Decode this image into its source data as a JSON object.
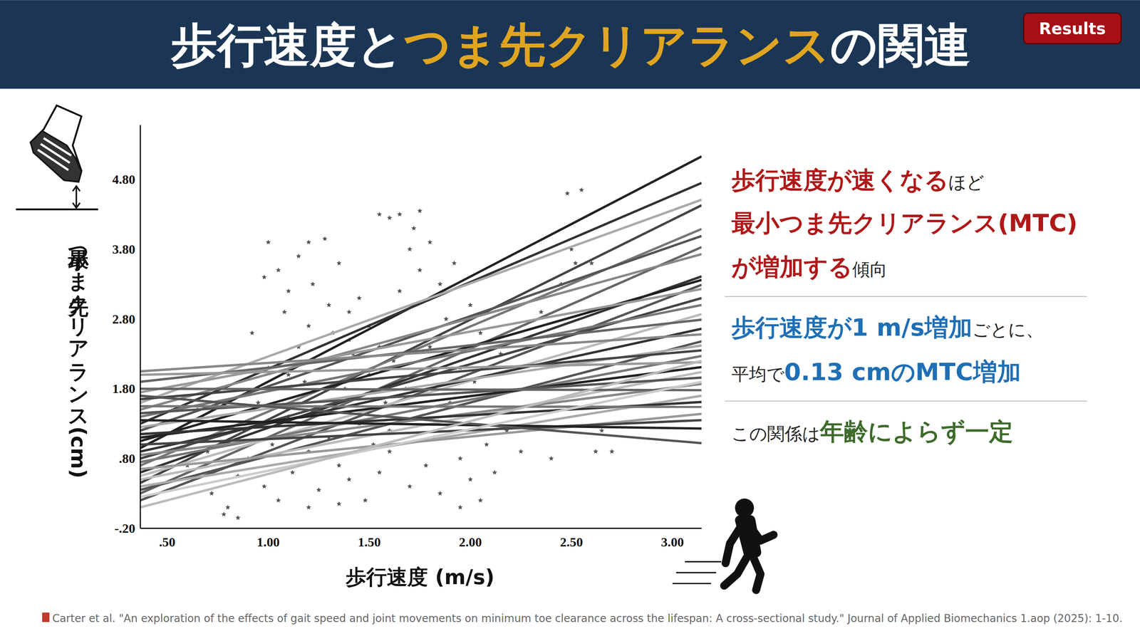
{
  "header": {
    "title": [
      {
        "text": "歩行速度と",
        "color": "#ffffff"
      },
      {
        "text": "つま先クリアランス",
        "color": "#e0a520"
      },
      {
        "text": "の関連",
        "color": "#ffffff"
      }
    ],
    "badge": "Results"
  },
  "chart_data": {
    "type": "scatter",
    "x_label": "歩行速度 (m/s)",
    "y_label": "最小つま先クリアランス (cm)",
    "xlim": [
      0.367,
      3.144
    ],
    "ylim": [
      -0.2,
      5.58
    ],
    "xticks": [
      {
        "value": 0.5,
        "label": ".50"
      },
      {
        "value": 1.0,
        "label": "1.00"
      },
      {
        "value": 1.5,
        "label": "1.50"
      },
      {
        "value": 2.0,
        "label": "2.00"
      },
      {
        "value": 2.5,
        "label": "2.50"
      },
      {
        "value": 3.0,
        "label": "3.00"
      }
    ],
    "yticks": [
      {
        "value": -0.2,
        "label": "-.20"
      },
      {
        "value": 0.8,
        "label": ".80"
      },
      {
        "value": 1.8,
        "label": "1.80"
      },
      {
        "value": 2.8,
        "label": "2.80"
      },
      {
        "value": 3.8,
        "label": "3.80"
      },
      {
        "value": 4.8,
        "label": "4.80"
      }
    ],
    "grid": false,
    "series": [
      {
        "type": "scatter",
        "marker": "star",
        "color": "#555555",
        "x": [
          0.72,
          0.8,
          0.85,
          0.88,
          0.9,
          0.92,
          0.95,
          0.98,
          1.0,
          1.0,
          1.02,
          1.05,
          1.05,
          1.08,
          1.1,
          1.1,
          1.12,
          1.15,
          1.15,
          1.18,
          1.2,
          1.2,
          1.22,
          1.25,
          1.25,
          1.28,
          1.3,
          1.3,
          1.32,
          1.35,
          1.35,
          1.38,
          1.4,
          1.4,
          1.42,
          1.45,
          1.45,
          1.48,
          1.5,
          1.5,
          1.52,
          1.55,
          1.55,
          1.58,
          1.2,
          1.28,
          0.98,
          1.1,
          1.4,
          1.6,
          1.6,
          1.62,
          1.65,
          1.65,
          1.68,
          1.7,
          1.7,
          1.72,
          1.75,
          1.75,
          1.78,
          1.8,
          1.8,
          1.82,
          1.85,
          1.85,
          1.88,
          1.9,
          1.92,
          1.95,
          1.95,
          1.98,
          2.0,
          2.0,
          2.02,
          2.05,
          2.08,
          2.1,
          2.12,
          2.15,
          2.18,
          2.2,
          2.25,
          2.3,
          2.35,
          2.4,
          2.45,
          2.5,
          2.52,
          2.48,
          2.55,
          2.6,
          2.62,
          2.7,
          2.65,
          1.75,
          1.6,
          1.55,
          1.2,
          1.35,
          1.95,
          2.05,
          0.78,
          0.85,
          0.6,
          0.65,
          0.55,
          0.7
        ],
        "values": [
          0.3,
          0.1,
          0.55,
          1.2,
          0.8,
          2.6,
          1.6,
          0.4,
          2.1,
          3.9,
          1.0,
          3.5,
          0.2,
          2.9,
          1.4,
          3.2,
          0.6,
          2.4,
          3.7,
          1.9,
          0.9,
          2.7,
          3.3,
          1.5,
          0.35,
          2.2,
          3.0,
          1.1,
          2.6,
          0.7,
          3.6,
          1.8,
          2.9,
          0.5,
          2.3,
          1.3,
          3.1,
          0.2,
          2.0,
          2.7,
          1.0,
          2.4,
          0.6,
          1.6,
          3.9,
          3.95,
          3.4,
          2.0,
          2.5,
          1.2,
          0.9,
          2.2,
          4.3,
          3.2,
          1.8,
          3.8,
          0.4,
          4.1,
          3.5,
          1.4,
          0.7,
          3.9,
          2.4,
          1.1,
          3.3,
          0.3,
          2.8,
          1.6,
          3.6,
          0.8,
          2.1,
          1.3,
          3.0,
          0.5,
          1.9,
          2.6,
          1.0,
          1.7,
          0.6,
          2.3,
          1.2,
          1.5,
          0.9,
          1.8,
          2.9,
          0.8,
          3.3,
          3.8,
          3.6,
          4.6,
          4.65,
          3.6,
          0.9,
          0.9,
          1.2,
          4.35,
          4.25,
          4.3,
          0.1,
          0.15,
          0.1,
          0.2,
          0.0,
          -0.05,
          0.7,
          1.5,
          1.2,
          0.9
        ]
      },
      {
        "type": "line",
        "color": "#222222",
        "x": [
          0.367,
          3.144
        ],
        "values": [
          0.95,
          5.13
        ]
      },
      {
        "type": "line",
        "color": "#333333",
        "x": [
          0.367,
          3.144
        ],
        "values": [
          1.3,
          4.75
        ]
      },
      {
        "type": "line",
        "color": "#444444",
        "x": [
          0.367,
          3.144
        ],
        "values": [
          0.45,
          4.43
        ]
      },
      {
        "type": "line",
        "color": "#aaaaaa",
        "x": [
          0.367,
          3.144
        ],
        "values": [
          1.6,
          4.51
        ]
      },
      {
        "type": "line",
        "color": "#777777",
        "x": [
          0.367,
          3.144
        ],
        "values": [
          0.7,
          4.09
        ]
      },
      {
        "type": "line",
        "color": "#555555",
        "x": [
          0.367,
          3.144
        ],
        "values": [
          1.2,
          3.99
        ]
      },
      {
        "type": "line",
        "color": "#666666",
        "x": [
          0.367,
          3.144
        ],
        "values": [
          0.3,
          3.83
        ]
      },
      {
        "type": "line",
        "color": "#888888",
        "x": [
          0.367,
          3.144
        ],
        "values": [
          1.5,
          3.73
        ]
      },
      {
        "type": "line",
        "color": "#333333",
        "x": [
          0.367,
          3.144
        ],
        "values": [
          0.6,
          3.41
        ]
      },
      {
        "type": "line",
        "color": "#222222",
        "x": [
          0.367,
          3.144
        ],
        "values": [
          1.05,
          3.36
        ]
      },
      {
        "type": "line",
        "color": "#555555",
        "x": [
          0.367,
          3.144
        ],
        "values": [
          0.2,
          3.29
        ]
      },
      {
        "type": "line",
        "color": "#999999",
        "x": [
          0.367,
          3.144
        ],
        "values": [
          1.75,
          3.23
        ]
      },
      {
        "type": "line",
        "color": "#444444",
        "x": [
          0.367,
          3.144
        ],
        "values": [
          0.8,
          3.1
        ]
      },
      {
        "type": "line",
        "color": "#777777",
        "x": [
          0.367,
          3.144
        ],
        "values": [
          1.4,
          3.0
        ]
      },
      {
        "type": "line",
        "color": "#bbbbbb",
        "x": [
          0.367,
          3.144
        ],
        "values": [
          0.55,
          2.87
        ]
      },
      {
        "type": "line",
        "color": "#666666",
        "x": [
          0.367,
          3.144
        ],
        "values": [
          1.9,
          2.79
        ]
      },
      {
        "type": "line",
        "color": "#333333",
        "x": [
          0.367,
          3.144
        ],
        "values": [
          0.9,
          2.66
        ]
      },
      {
        "type": "line",
        "color": "#888888",
        "x": [
          0.367,
          3.144
        ],
        "values": [
          2.05,
          2.58
        ]
      },
      {
        "type": "line",
        "color": "#555555",
        "x": [
          0.367,
          3.144
        ],
        "values": [
          0.35,
          2.48
        ]
      },
      {
        "type": "line",
        "color": "#aaaaaa",
        "x": [
          0.367,
          3.144
        ],
        "values": [
          1.25,
          2.42
        ]
      },
      {
        "type": "line",
        "color": "#444444",
        "x": [
          0.367,
          3.144
        ],
        "values": [
          1.65,
          2.35
        ]
      },
      {
        "type": "line",
        "color": "#777777",
        "x": [
          0.367,
          3.144
        ],
        "values": [
          0.75,
          2.27
        ]
      },
      {
        "type": "line",
        "color": "#999999",
        "x": [
          0.367,
          3.144
        ],
        "values": [
          2.0,
          2.18
        ]
      },
      {
        "type": "line",
        "color": "#222222",
        "x": [
          0.367,
          3.144
        ],
        "values": [
          1.1,
          2.11
        ]
      },
      {
        "type": "line",
        "color": "#bbbbbb",
        "x": [
          0.367,
          3.144
        ],
        "values": [
          0.5,
          2.04
        ]
      },
      {
        "type": "line",
        "color": "#555555",
        "x": [
          0.367,
          3.144
        ],
        "values": [
          1.45,
          1.96
        ]
      },
      {
        "type": "line",
        "color": "#888888",
        "x": [
          0.367,
          3.144
        ],
        "values": [
          0.85,
          1.87
        ]
      },
      {
        "type": "line",
        "color": "#666666",
        "x": [
          0.367,
          3.144
        ],
        "values": [
          1.8,
          1.78
        ]
      },
      {
        "type": "line",
        "color": "#aaaaaa",
        "x": [
          0.367,
          3.144
        ],
        "values": [
          0.4,
          1.7
        ]
      },
      {
        "type": "line",
        "color": "#333333",
        "x": [
          0.367,
          3.144
        ],
        "values": [
          1.15,
          1.61
        ]
      },
      {
        "type": "line",
        "color": "#777777",
        "x": [
          0.367,
          3.144
        ],
        "values": [
          1.55,
          1.54
        ]
      },
      {
        "type": "line",
        "color": "#999999",
        "x": [
          0.367,
          3.144
        ],
        "values": [
          0.65,
          1.44
        ]
      },
      {
        "type": "line",
        "color": "#444444",
        "x": [
          0.367,
          3.144
        ],
        "values": [
          1.0,
          1.35
        ]
      },
      {
        "type": "line",
        "color": "#222222",
        "x": [
          0.367,
          3.144
        ],
        "values": [
          1.35,
          1.23
        ]
      },
      {
        "type": "line",
        "color": "#555555",
        "x": [
          0.367,
          3.144
        ],
        "values": [
          1.7,
          1.02
        ]
      },
      {
        "type": "line",
        "color": "#cccccc",
        "x": [
          0.367,
          3.144
        ],
        "values": [
          0.25,
          1.9
        ]
      },
      {
        "type": "line",
        "color": "#bbbbbb",
        "x": [
          0.367,
          3.144
        ],
        "values": [
          0.1,
          2.2
        ]
      }
    ]
  },
  "findings": [
    [
      [
        {
          "text": "歩行速度が速くなる",
          "color": "#b01818"
        },
        {
          "text": "ほど",
          "color": "#222222"
        }
      ],
      [
        {
          "text": "最小つま先クリアランス(MTC)",
          "color": "#b01818"
        }
      ],
      [
        {
          "text": "が増加する",
          "color": "#b01818"
        },
        {
          "text": "傾向",
          "color": "#222222"
        }
      ]
    ],
    [
      [
        {
          "text": "歩行速度が1 m/s増加",
          "color": "#1f6fb5"
        },
        {
          "text": "ごとに、",
          "color": "#222222"
        }
      ],
      [
        {
          "text": "平均で",
          "color": "#222222"
        },
        {
          "text": "0.13 cmのMTC増加",
          "color": "#1f6fb5"
        }
      ]
    ],
    [
      [
        {
          "text": "この関係は",
          "color": "#222222"
        },
        {
          "text": "年齢によらず一定",
          "color": "#3e6b2a"
        }
      ]
    ]
  ],
  "citation": "Carter et al. \"An exploration of the effects of gait speed and joint movements on minimum toe clearance across the lifespan: A cross-sectional study.\" Journal of Applied Biomechanics 1.aop (2025): 1-10."
}
